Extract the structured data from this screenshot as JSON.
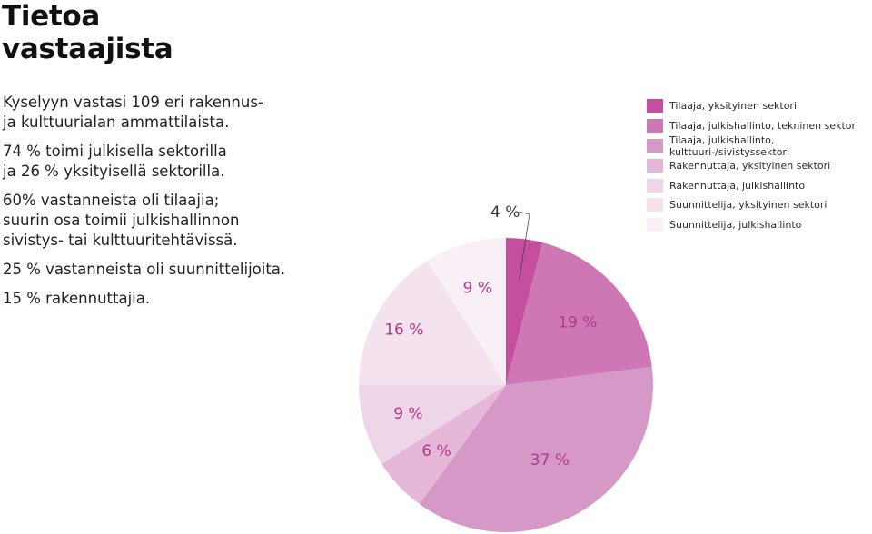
{
  "title_line1": "Tietoa",
  "title_line2": "vastaajista",
  "paragraphs": [
    "Kyselyyn vastasi 109 eri rakennus-\nja kulttuurialan ammattilaista.",
    "74 % toimi julkisella sektorilla\nja 26 % yksityisellä sektorilla.",
    "60% vastanneista oli tilaajia;\nsuurin osa toimii julkishallinnon\nsivistys- tai kulttuuritehtävissä.",
    "25 % vastanneista oli suunnittelijoita.",
    "15 % rakennuttajia."
  ],
  "chart_data": {
    "type": "pie",
    "unit": "%",
    "slices": [
      {
        "name": "Tilaaja, yksityinen sektori",
        "value": 4,
        "label": "4 %",
        "color": "#c44f9e"
      },
      {
        "name": "Tilaaja, julkishallinto, tekninen sektori",
        "value": 19,
        "label": "19 %",
        "color": "#cf77b4"
      },
      {
        "name": "Tilaaja, julkishallinto, kulttuuri-/sivistyssektori",
        "value": 37,
        "label": "37 %",
        "color": "#d698c7"
      },
      {
        "name": "Rakennuttaja, yksityinen sektori",
        "value": 6,
        "label": "6 %",
        "color": "#e5b7d8"
      },
      {
        "name": "Rakennuttaja, julkishallinto",
        "value": 9,
        "label": "9 %",
        "color": "#efd5e8"
      },
      {
        "name": "Suunnittelija, yksityinen sektori",
        "value": 16,
        "label": "16 %",
        "color": "#f4e3ef"
      },
      {
        "name": "Suunnittelija, julkishallinto",
        "value": 9,
        "label": "9 %",
        "color": "#f9eff6"
      }
    ],
    "label_color": "#b0398a"
  }
}
